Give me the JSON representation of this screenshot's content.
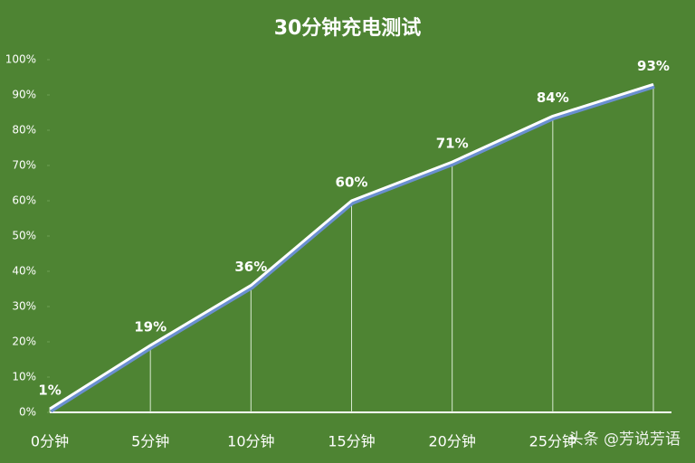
{
  "chart_data": {
    "type": "line",
    "title": "30分钟充电测试",
    "categories": [
      "0分钟",
      "5分钟",
      "10分钟",
      "15分钟",
      "20分钟",
      "25分钟",
      null
    ],
    "values": [
      1,
      19,
      36,
      60,
      71,
      84,
      93
    ],
    "value_labels": [
      "1%",
      "19%",
      "36%",
      "60%",
      "71%",
      "84%",
      "93%"
    ],
    "color": "#ffffff",
    "ylim": [
      0,
      100
    ],
    "yticks": [
      {
        "value": 0,
        "label": "0%"
      },
      {
        "value": 10,
        "label": "10%"
      },
      {
        "value": 20,
        "label": "20%"
      },
      {
        "value": 30,
        "label": "30%"
      },
      {
        "value": 40,
        "label": "40%"
      },
      {
        "value": 50,
        "label": "50%"
      },
      {
        "value": 60,
        "label": "60%"
      },
      {
        "value": 70,
        "label": "70%"
      },
      {
        "value": 80,
        "label": "80%"
      },
      {
        "value": 90,
        "label": "90%"
      },
      {
        "value": 100,
        "label": "100%"
      }
    ]
  },
  "watermark": "头条 @芳说芳语"
}
